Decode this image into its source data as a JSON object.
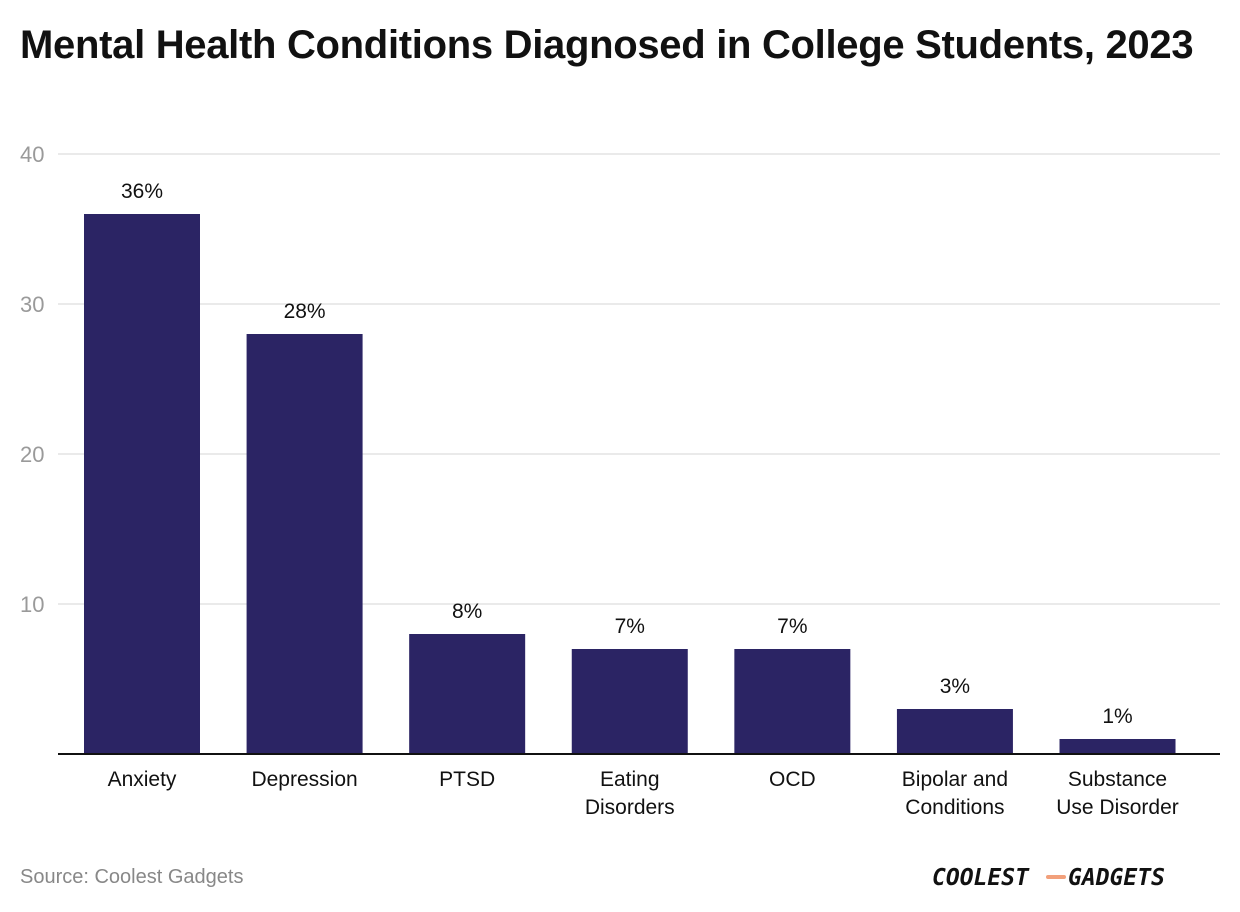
{
  "chart_data": {
    "type": "bar",
    "title": "Mental Health Conditions Diagnosed in College Students, 2023",
    "categories": [
      [
        "Anxiety"
      ],
      [
        "Depression"
      ],
      [
        "PTSD"
      ],
      [
        "Eating",
        "Disorders"
      ],
      [
        "OCD"
      ],
      [
        "Bipolar and",
        "Conditions"
      ],
      [
        "Substance",
        "Use Disorder"
      ]
    ],
    "values": [
      36,
      28,
      8,
      7,
      7,
      3,
      1
    ],
    "value_labels": [
      "36%",
      "28%",
      "8%",
      "7%",
      "7%",
      "3%",
      "1%"
    ],
    "ylim": [
      0,
      40
    ],
    "yticks": [
      10,
      20,
      30,
      40
    ],
    "grid": true,
    "bar_color": "#2b2464"
  },
  "source": "Source: Coolest Gadgets",
  "logo": {
    "part1": "COOLEST",
    "part2": "GADGETS",
    "dash_color": "#f2a07b"
  }
}
